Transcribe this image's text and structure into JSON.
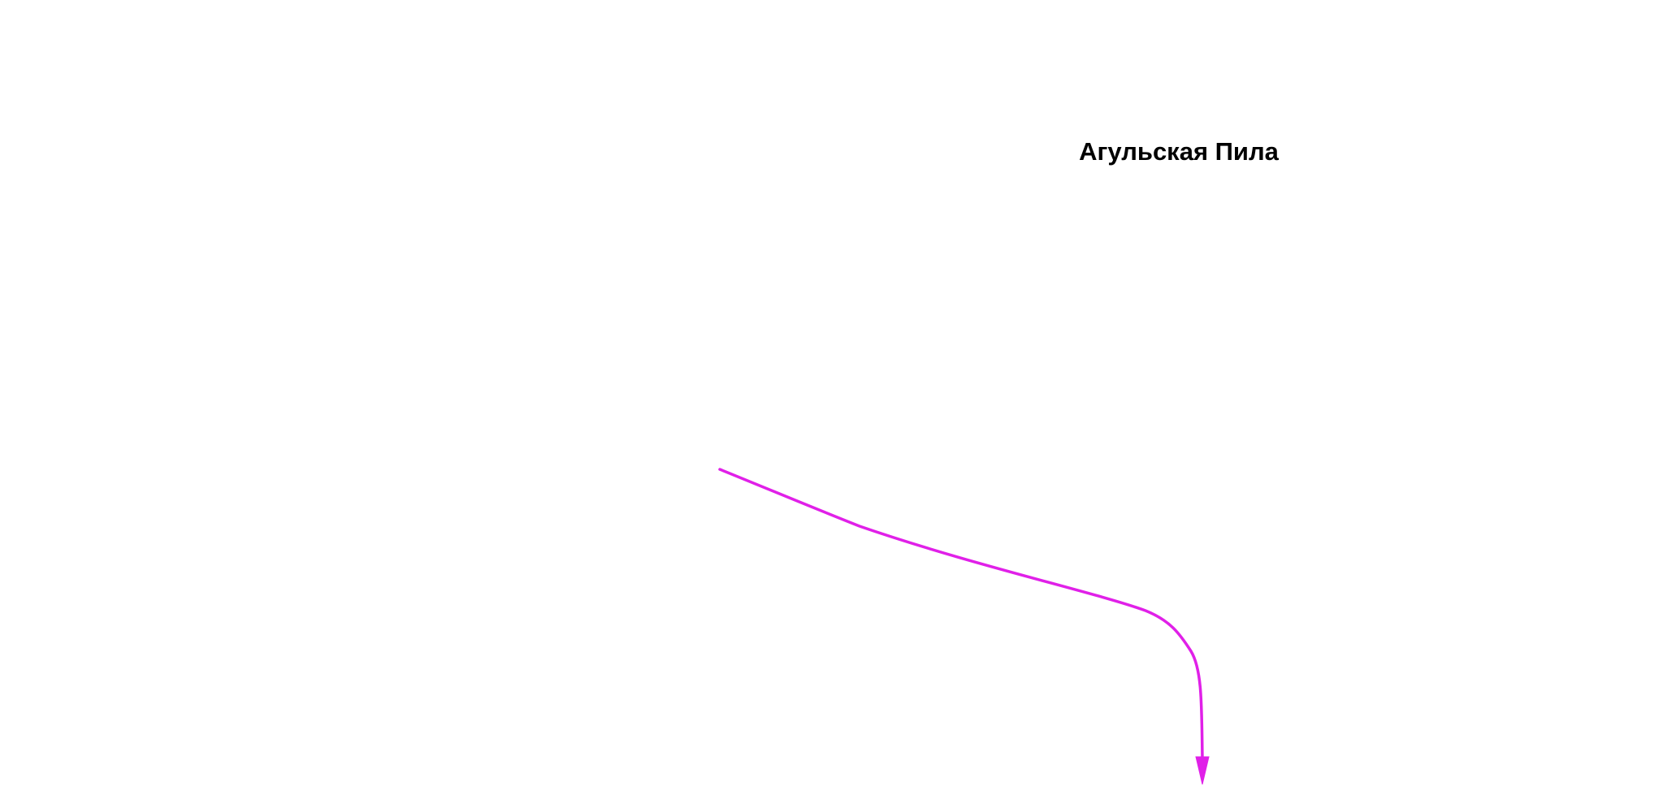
{
  "label": {
    "text": "Агульская Пила"
  }
}
